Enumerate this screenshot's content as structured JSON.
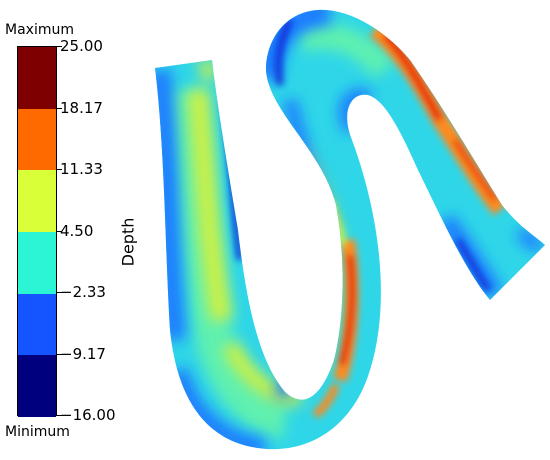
{
  "legend": {
    "max_label": "Maximum",
    "min_label": "Minimum",
    "ticks": [
      "25.00",
      "18.17",
      "11.33",
      "4.50",
      "−2.33",
      "−9.17",
      "−16.00"
    ],
    "bands": [
      "#7f0000",
      "#ff6a00",
      "#d8ff38",
      "#2bf5d4",
      "#1555ff",
      "#00007f"
    ]
  },
  "axis_label": "Depth",
  "colors": {
    "deep_blue": "#0a2fd8",
    "blue": "#1e7bff",
    "cyan": "#2fd6e8",
    "green_cyan": "#5ef0b0",
    "yellow_green": "#c8f04a",
    "orange": "#ff8a1a",
    "red": "#e8260e"
  }
}
